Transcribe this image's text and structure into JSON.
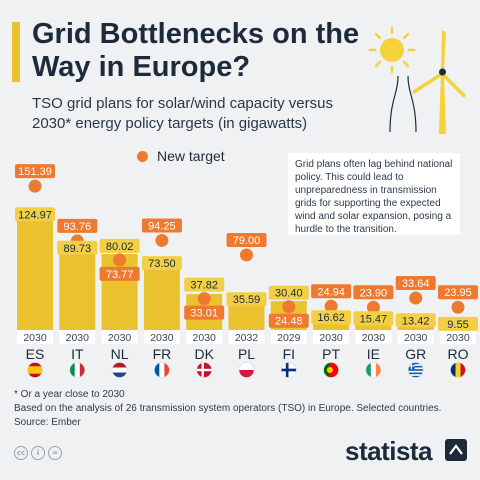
{
  "header": {
    "title": "Grid Bottlenecks on the Way in Europe?",
    "subtitle": "TSO grid plans for solar/wind capacity versus 2030* energy policy targets (in gigawatts)"
  },
  "legend": {
    "target_label": "New target"
  },
  "note": "Grid plans often lag behind national policy. This could lead to unpreparedness in transmission grids for supporting the expected wind and solar expansion, posing a hurdle to the transition.",
  "footnotes": {
    "asterisk": "* Or a year close to 2030",
    "basis": "Based on the analysis of 26 transmission system operators (TSO) in Europe. Selected countries.",
    "source": "Source: Ember"
  },
  "brand": {
    "name": "statista"
  },
  "colors": {
    "bar": "#e9c22e",
    "target": "#ee7a2f",
    "accent": "#e9c22e",
    "text": "#1c2a3a"
  },
  "chart_data": {
    "type": "bar",
    "categories": [
      "ES",
      "IT",
      "NL",
      "FR",
      "DK",
      "PL",
      "FI",
      "PT",
      "IE",
      "GR",
      "RO"
    ],
    "years": [
      "2030",
      "2030",
      "2030",
      "2030",
      "2030",
      "2032",
      "2029",
      "2030",
      "2030",
      "2030",
      "2030"
    ],
    "series": [
      {
        "values": [
          124.97,
          89.73,
          80.02,
          73.5,
          37.82,
          35.59,
          30.4,
          16.62,
          15.47,
          13.42,
          9.55
        ]
      },
      {
        "name": "New target",
        "values": [
          151.39,
          93.76,
          73.77,
          94.25,
          33.01,
          79.0,
          24.48,
          24.94,
          23.9,
          33.64,
          23.95
        ]
      }
    ],
    "ylim": [
      0,
      160
    ],
    "flags": [
      "flag-es",
      "flag-it",
      "flag-nl",
      "flag-fr",
      "flag-dk",
      "flag-pl",
      "flag-fi",
      "flag-pt",
      "flag-ie",
      "flag-gr",
      "flag-ro"
    ]
  }
}
